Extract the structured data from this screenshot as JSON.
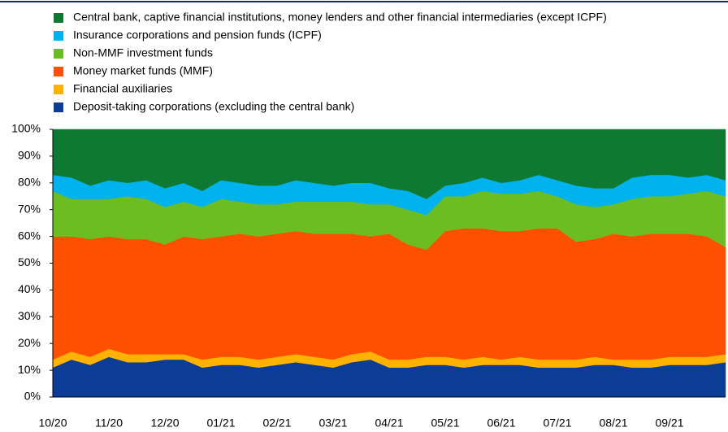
{
  "chart_data": {
    "type": "stacked_area",
    "categories": [
      "10/20",
      null,
      null,
      "11/20",
      null,
      null,
      "12/20",
      null,
      null,
      "01/21",
      null,
      null,
      "02/21",
      null,
      null,
      "03/21",
      null,
      null,
      "04/21",
      null,
      null,
      "05/21",
      null,
      null,
      "06/21",
      null,
      null,
      "07/21",
      null,
      null,
      "08/21",
      null,
      null,
      "09/21",
      null,
      null,
      null
    ],
    "series": [
      {
        "name": "Deposit-taking corporations (excluding the central bank)",
        "color": "#0b3c96",
        "values": [
          11,
          14,
          12,
          15,
          13,
          13,
          14,
          14,
          11,
          12,
          12,
          11,
          12,
          13,
          12,
          11,
          13,
          14,
          11,
          11,
          12,
          12,
          11,
          12,
          12,
          12,
          11,
          11,
          11,
          12,
          12,
          11,
          11,
          12,
          12,
          12,
          13
        ]
      },
      {
        "name": "Financial auxiliaries",
        "color": "#ffb300",
        "values": [
          3,
          3,
          3,
          3,
          3,
          3,
          2,
          2,
          3,
          3,
          3,
          3,
          3,
          3,
          3,
          3,
          3,
          3,
          3,
          3,
          3,
          3,
          3,
          3,
          2,
          3,
          3,
          3,
          3,
          3,
          2,
          3,
          3,
          3,
          3,
          3,
          3
        ]
      },
      {
        "name": "Money market funds (MMF)",
        "color": "#ff5000",
        "values": [
          46,
          43,
          44,
          42,
          43,
          43,
          41,
          44,
          45,
          45,
          46,
          46,
          46,
          46,
          46,
          47,
          45,
          43,
          47,
          43,
          40,
          47,
          49,
          48,
          48,
          47,
          49,
          49,
          44,
          44,
          47,
          46,
          47,
          46,
          46,
          45,
          40
        ]
      },
      {
        "name": "Non-MMF investment funds",
        "color": "#6cbd22",
        "values": [
          17,
          14,
          15,
          14,
          16,
          15,
          14,
          13,
          12,
          14,
          12,
          12,
          11,
          11,
          12,
          12,
          12,
          12,
          11,
          13,
          13,
          13,
          12,
          14,
          14,
          14,
          14,
          12,
          14,
          12,
          11,
          14,
          14,
          14,
          15,
          17,
          19
        ]
      },
      {
        "name": "Insurance corporations and pension funds (ICPF)",
        "color": "#00b2ee",
        "values": [
          6,
          8,
          5,
          7,
          5,
          7,
          7,
          7,
          6,
          7,
          7,
          7,
          7,
          8,
          7,
          6,
          7,
          8,
          6,
          7,
          6,
          4,
          5,
          5,
          4,
          5,
          6,
          6,
          7,
          7,
          6,
          8,
          8,
          8,
          6,
          6,
          6
        ]
      },
      {
        "name": "Central bank, captive financial institutions, money lenders and other financial intermediaries (except ICPF)",
        "color": "#0e7a31",
        "values": [
          17,
          18,
          21,
          19,
          20,
          19,
          22,
          20,
          23,
          19,
          20,
          21,
          21,
          19,
          20,
          21,
          20,
          20,
          22,
          23,
          26,
          21,
          20,
          18,
          20,
          19,
          17,
          19,
          21,
          22,
          22,
          18,
          17,
          17,
          18,
          17,
          19
        ]
      }
    ],
    "ylim": [
      0,
      100
    ],
    "yticks": [
      {
        "value": 0,
        "label": "0%"
      },
      {
        "value": 10,
        "label": "10%"
      },
      {
        "value": 20,
        "label": "20%"
      },
      {
        "value": 30,
        "label": "30%"
      },
      {
        "value": 40,
        "label": "40%"
      },
      {
        "value": 50,
        "label": "50%"
      },
      {
        "value": 60,
        "label": "60%"
      },
      {
        "value": 70,
        "label": "70%"
      },
      {
        "value": 80,
        "label": "80%"
      },
      {
        "value": 90,
        "label": "90%"
      },
      {
        "value": 100,
        "label": "100%"
      }
    ],
    "legend": "top-left"
  }
}
